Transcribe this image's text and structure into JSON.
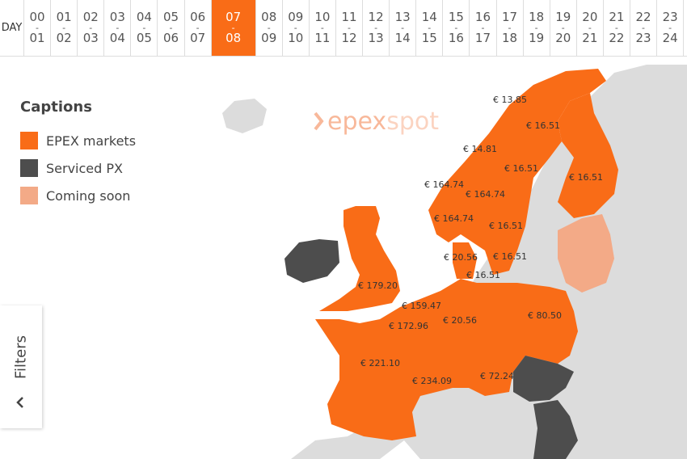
{
  "hour_selector": {
    "day_label": "DAY",
    "separator": "-",
    "selected": 7,
    "slots": [
      {
        "from": "00",
        "to": "01"
      },
      {
        "from": "01",
        "to": "02"
      },
      {
        "from": "02",
        "to": "03"
      },
      {
        "from": "03",
        "to": "04"
      },
      {
        "from": "04",
        "to": "05"
      },
      {
        "from": "05",
        "to": "06"
      },
      {
        "from": "06",
        "to": "07"
      },
      {
        "from": "07",
        "to": "08"
      },
      {
        "from": "08",
        "to": "09"
      },
      {
        "from": "09",
        "to": "10"
      },
      {
        "from": "10",
        "to": "11"
      },
      {
        "from": "11",
        "to": "12"
      },
      {
        "from": "12",
        "to": "13"
      },
      {
        "from": "13",
        "to": "14"
      },
      {
        "from": "14",
        "to": "15"
      },
      {
        "from": "15",
        "to": "16"
      },
      {
        "from": "16",
        "to": "17"
      },
      {
        "from": "17",
        "to": "18"
      },
      {
        "from": "18",
        "to": "19"
      },
      {
        "from": "19",
        "to": "20"
      },
      {
        "from": "20",
        "to": "21"
      },
      {
        "from": "21",
        "to": "22"
      },
      {
        "from": "22",
        "to": "23"
      },
      {
        "from": "23",
        "to": "24"
      }
    ]
  },
  "captions": {
    "title": "Captions",
    "items": [
      {
        "label": "EPEX markets",
        "color": "#f96c17"
      },
      {
        "label": "Serviced PX",
        "color": "#4d4d4d"
      },
      {
        "label": "Coming soon",
        "color": "#f3aa87"
      }
    ]
  },
  "logo": {
    "prefix": "epex",
    "suffix": "spot"
  },
  "prices": [
    "€ 13.85",
    "€ 16.51",
    "€ 14.81",
    "€ 16.51",
    "€ 16.51",
    "€ 164.74",
    "€ 164.74",
    "€ 164.74",
    "€ 16.51",
    "€ 20.56",
    "€ 16.51",
    "€ 16.51",
    "€ 179.20",
    "€ 159.47",
    "€ 172.96",
    "€ 20.56",
    "€ 80.50",
    "€ 221.10",
    "€ 234.09",
    "€ 72.24"
  ],
  "filters": {
    "label": "Filters"
  }
}
